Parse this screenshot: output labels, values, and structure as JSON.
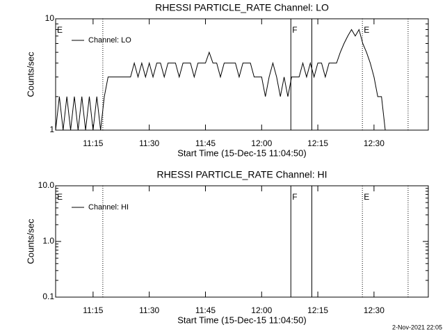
{
  "chart_data": [
    {
      "type": "line",
      "title": "RHESSI PARTICLE_RATE Channel: LO",
      "xlabel": "Start Time (15-Dec-15 11:04:50)",
      "ylabel": "Counts/sec",
      "log_y": true,
      "xlim": [
        "11:05",
        "12:44:30"
      ],
      "ylim": [
        1,
        10
      ],
      "yticks": [
        1,
        10
      ],
      "xticks": [
        "11:15",
        "11:30",
        "11:45",
        "12:00",
        "12:15",
        "12:30"
      ],
      "legend": "upper left",
      "events": [
        {
          "x": "11:05",
          "label": "E"
        },
        {
          "x": "11:17:36",
          "line": "dotted"
        },
        {
          "x": "12:07:48",
          "line": "solid",
          "label": "F"
        },
        {
          "x": "12:13:24",
          "line": "solid"
        },
        {
          "x": "12:26:54",
          "line": "dotted",
          "label": "E"
        },
        {
          "x": "12:39:06",
          "line": "dotted"
        }
      ],
      "series": [
        {
          "name": "Channel: LO",
          "color": "#000000",
          "x": [
            "11:05",
            "11:06",
            "11:07",
            "11:08",
            "11:09",
            "11:10",
            "11:11",
            "11:12",
            "11:13",
            "11:14",
            "11:15",
            "11:16",
            "11:17",
            "11:18",
            "11:19",
            "11:20",
            "11:21",
            "11:22",
            "11:23",
            "11:24",
            "11:25",
            "11:26",
            "11:27",
            "11:28",
            "11:29",
            "11:30",
            "11:31",
            "11:32",
            "11:33",
            "11:34",
            "11:35",
            "11:36",
            "11:37",
            "11:38",
            "11:39",
            "11:40",
            "11:41",
            "11:42",
            "11:43",
            "11:44",
            "11:45",
            "11:46",
            "11:47",
            "11:48",
            "11:49",
            "11:50",
            "11:51",
            "11:52",
            "11:53",
            "11:54",
            "11:55",
            "11:56",
            "11:57",
            "11:58",
            "11:59",
            "12:00",
            "12:01",
            "12:02",
            "12:03",
            "12:04",
            "12:05",
            "12:06",
            "12:07",
            "12:08",
            "12:09",
            "12:10",
            "12:11",
            "12:12",
            "12:13",
            "12:14",
            "12:15",
            "12:16",
            "12:17",
            "12:18",
            "12:19",
            "12:20",
            "12:21",
            "12:22",
            "12:23",
            "12:24",
            "12:25",
            "12:26",
            "12:27",
            "12:28",
            "12:29",
            "12:30",
            "12:31",
            "12:32",
            "12:33",
            "12:34",
            "12:35"
          ],
          "values": [
            1,
            2,
            1,
            2,
            1,
            2,
            1,
            2,
            1,
            2,
            1,
            2,
            1,
            2,
            3,
            3,
            3,
            3,
            3,
            3,
            3,
            4,
            3,
            4,
            3,
            4,
            3,
            4,
            4,
            3,
            4,
            4,
            4,
            3,
            4,
            4,
            4,
            3,
            4,
            4,
            4,
            5,
            4,
            4,
            3,
            4,
            4,
            4,
            4,
            3,
            4,
            4,
            4,
            3,
            3,
            3,
            2,
            3,
            4,
            3,
            2,
            3,
            2,
            3,
            3,
            3,
            4,
            3,
            4,
            3,
            4,
            4,
            3,
            4,
            4,
            4,
            5,
            6,
            7,
            8,
            7,
            8,
            6,
            5,
            4,
            3,
            2,
            2,
            1,
            1,
            1
          ]
        }
      ]
    },
    {
      "type": "line",
      "title": "RHESSI PARTICLE_RATE Channel: HI",
      "xlabel": "Start Time (15-Dec-15 11:04:50)",
      "ylabel": "Counts/sec",
      "log_y": true,
      "xlim": [
        "11:05",
        "12:44:30"
      ],
      "ylim": [
        0.1,
        10
      ],
      "yticks": [
        0.1,
        {
          "value": 1,
          "label": "1.0"
        },
        {
          "value": 10,
          "label": "10.0"
        }
      ],
      "xticks": [
        "11:15",
        "11:30",
        "11:45",
        "12:00",
        "12:15",
        "12:30"
      ],
      "legend": "upper left",
      "events": [
        {
          "x": "11:05",
          "label": "E"
        },
        {
          "x": "11:17:36",
          "line": "dotted"
        },
        {
          "x": "12:07:48",
          "line": "solid",
          "label": "F"
        },
        {
          "x": "12:13:24",
          "line": "solid"
        },
        {
          "x": "12:26:54",
          "line": "dotted",
          "label": "E"
        },
        {
          "x": "12:39:06",
          "line": "dotted"
        }
      ],
      "series": [
        {
          "name": "Channel: HI",
          "color": "#000000",
          "x": [],
          "values": []
        }
      ]
    }
  ],
  "timestamp": "2-Nov-2021 22:05"
}
